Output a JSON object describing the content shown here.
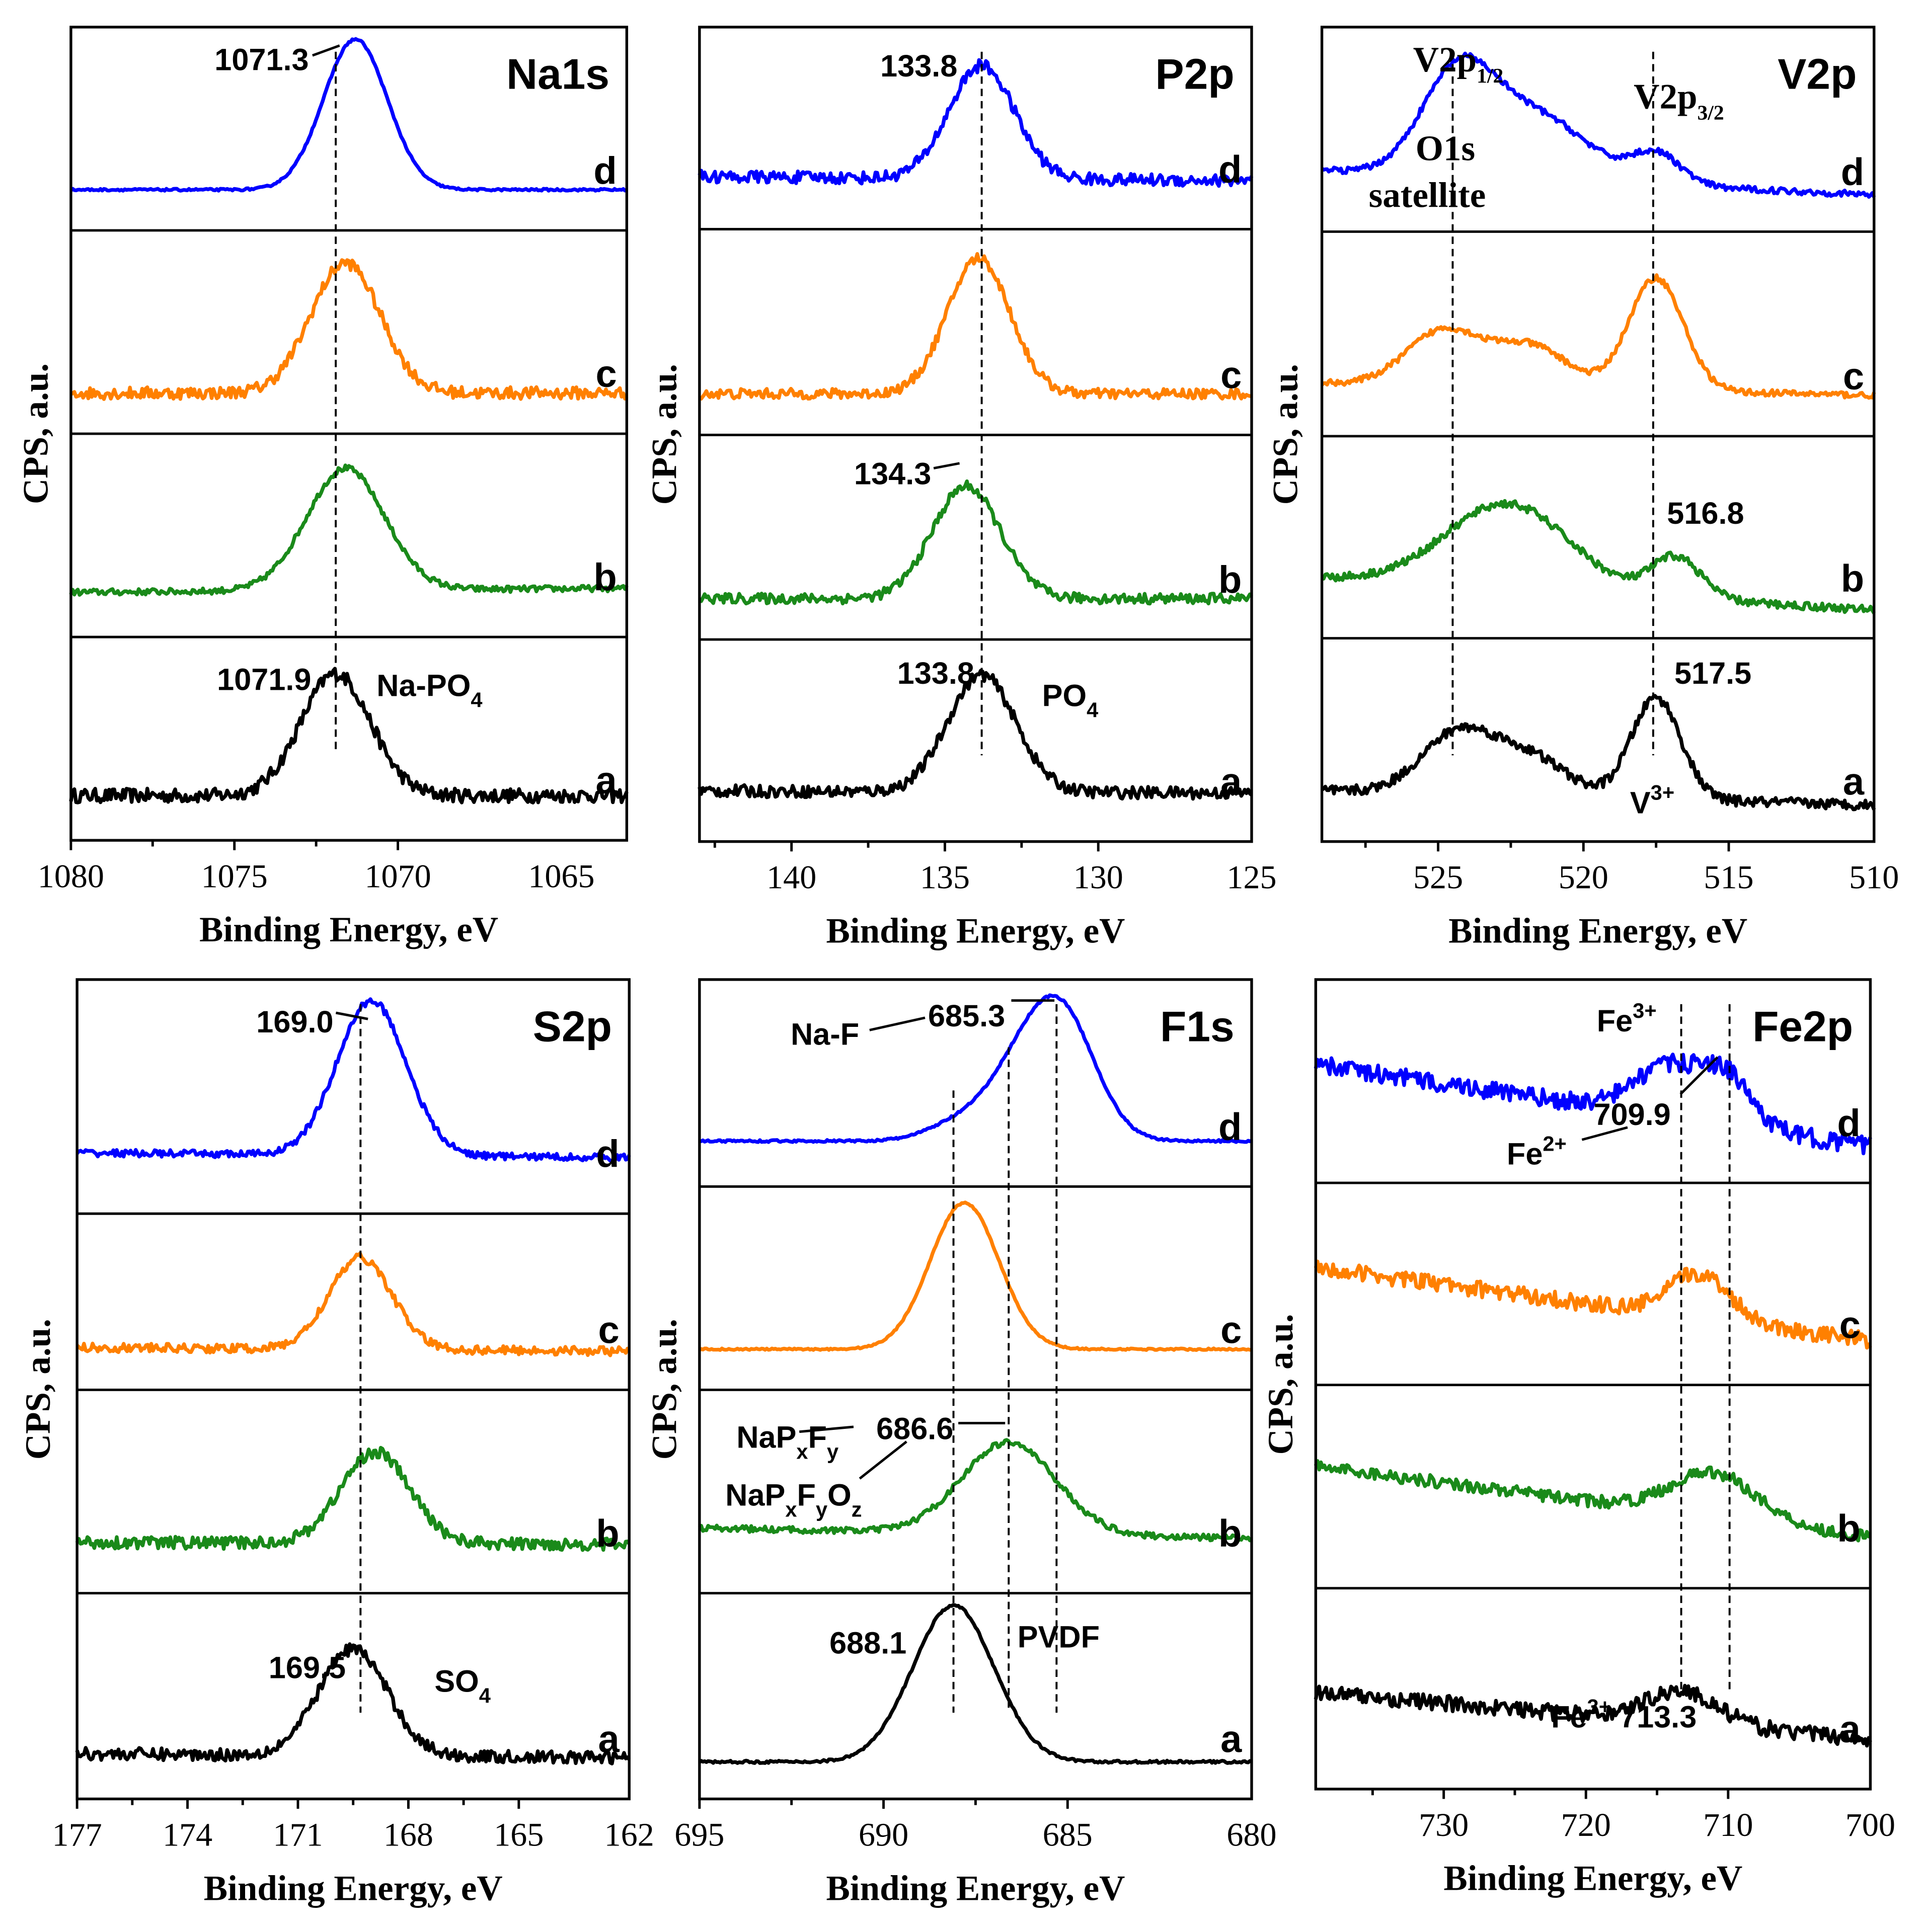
{
  "chart_data": [
    {
      "type": "line",
      "title": "Na1s",
      "xlabel": "Binding Energy, eV",
      "ylabel": "CPS, a.u.",
      "xlim": [
        1080,
        1063
      ],
      "ticks": [
        1080,
        1075,
        1070,
        1065
      ],
      "tick_labels": [
        "1080",
        "1075",
        "1070",
        "1065"
      ],
      "reference_lines_eV": [
        1071.9
      ],
      "spectra": [
        {
          "label": "a",
          "color": "#000000",
          "baseline": [
            0.22,
            0.22
          ],
          "noise": 0.035,
          "peaks": [
            {
              "center": 1071.9,
              "height": 0.6,
              "fwhm": 2.5
            }
          ]
        },
        {
          "label": "b",
          "color": "#1a8a1a",
          "baseline": [
            0.22,
            0.24
          ],
          "noise": 0.015,
          "peaks": [
            {
              "center": 1071.6,
              "height": 0.6,
              "fwhm": 2.8
            }
          ]
        },
        {
          "label": "c",
          "color": "#ff8000",
          "baseline": [
            0.2,
            0.2
          ],
          "noise": 0.03,
          "peaks": [
            {
              "center": 1071.6,
              "height": 0.64,
              "fwhm": 2.5
            }
          ]
        },
        {
          "label": "d",
          "color": "#0000ff",
          "baseline": [
            0.2,
            0.2
          ],
          "noise": 0.005,
          "peaks": [
            {
              "center": 1071.3,
              "height": 0.74,
              "fwhm": 2.3
            }
          ]
        }
      ],
      "annotations": [
        {
          "segments": [
            {
              "text": "1071.3"
            }
          ]
        },
        {
          "segments": [
            {
              "text": "1071.9"
            }
          ]
        },
        {
          "segments": [
            {
              "text": "Na-PO"
            },
            {
              "text": "4",
              "shift": "sub"
            }
          ]
        }
      ]
    },
    {
      "type": "line",
      "title": "P2p",
      "xlabel": "Binding Energy, eV",
      "ylabel": "CPS, a.u.",
      "xlim": [
        143,
        125
      ],
      "ticks": [
        140,
        135,
        130,
        125
      ],
      "tick_labels": [
        "140",
        "135",
        "130",
        "125"
      ],
      "reference_lines_eV": [
        133.8
      ],
      "spectra": [
        {
          "label": "a",
          "color": "#000000",
          "baseline": [
            0.25,
            0.24
          ],
          "noise": 0.03,
          "peaks": [
            {
              "center": 133.8,
              "height": 0.58,
              "fwhm": 2.6
            }
          ]
        },
        {
          "label": "b",
          "color": "#1a8a1a",
          "baseline": [
            0.2,
            0.2
          ],
          "noise": 0.025,
          "peaks": [
            {
              "center": 134.3,
              "height": 0.55,
              "fwhm": 2.6
            }
          ]
        },
        {
          "label": "c",
          "color": "#ff8000",
          "baseline": [
            0.2,
            0.2
          ],
          "noise": 0.025,
          "peaks": [
            {
              "center": 133.9,
              "height": 0.66,
              "fwhm": 2.4
            }
          ]
        },
        {
          "label": "d",
          "color": "#0000ff",
          "baseline": [
            0.26,
            0.24
          ],
          "noise": 0.03,
          "peaks": [
            {
              "center": 133.8,
              "height": 0.56,
              "fwhm": 2.5
            }
          ]
        }
      ],
      "annotations": [
        {
          "segments": [
            {
              "text": "133.8"
            }
          ]
        },
        {
          "segments": [
            {
              "text": "134.3"
            }
          ]
        },
        {
          "segments": [
            {
              "text": "133.8"
            }
          ]
        },
        {
          "segments": [
            {
              "text": "PO"
            },
            {
              "text": "4",
              "shift": "sub"
            }
          ]
        }
      ]
    },
    {
      "type": "line",
      "title": "V2p",
      "xlabel": "Binding Energy, eV",
      "ylabel": "CPS, a.u.",
      "xlim": [
        529,
        510
      ],
      "ticks": [
        525,
        520,
        515,
        510
      ],
      "tick_labels": [
        "525",
        "520",
        "515",
        "510"
      ],
      "reference_lines_eV": [
        524.5,
        517.6
      ],
      "spectra": [
        {
          "label": "a",
          "color": "#000000",
          "baseline": [
            0.25,
            0.18
          ],
          "noise": 0.025,
          "peaks": [
            {
              "center": 524.3,
              "height": 0.3,
              "fwhm": 3
            },
            {
              "center": 521.8,
              "height": 0.18,
              "fwhm": 3
            },
            {
              "center": 517.5,
              "height": 0.5,
              "fwhm": 2
            }
          ]
        },
        {
          "label": "b",
          "color": "#1a8a1a",
          "baseline": [
            0.3,
            0.14
          ],
          "noise": 0.02,
          "peaks": [
            {
              "center": 522.6,
              "height": 0.42,
              "fwhm": 5
            },
            {
              "center": 516.8,
              "height": 0.2,
              "fwhm": 2
            }
          ]
        },
        {
          "label": "c",
          "color": "#ff8000",
          "baseline": [
            0.26,
            0.2
          ],
          "noise": 0.015,
          "peaks": [
            {
              "center": 524.8,
              "height": 0.27,
              "fwhm": 3
            },
            {
              "center": 521.8,
              "height": 0.2,
              "fwhm": 3
            },
            {
              "center": 517.5,
              "height": 0.55,
              "fwhm": 2.2
            }
          ]
        },
        {
          "label": "d",
          "color": "#0000ff",
          "baseline": [
            0.3,
            0.18
          ],
          "noise": 0.015,
          "peaks": [
            {
              "center": 524.3,
              "height": 0.5,
              "fwhm": 3
            },
            {
              "center": 521.5,
              "height": 0.3,
              "fwhm": 4
            },
            {
              "center": 517.5,
              "height": 0.15,
              "fwhm": 2
            }
          ]
        }
      ],
      "annotations": [
        {
          "segments": [
            {
              "text": "V2p"
            },
            {
              "text": "1/2",
              "shift": "sub"
            }
          ]
        },
        {
          "segments": [
            {
              "text": "O1s"
            }
          ]
        },
        {
          "segments": [
            {
              "text": "satellite"
            }
          ]
        },
        {
          "segments": [
            {
              "text": "V2p"
            },
            {
              "text": "3/2",
              "shift": "sub"
            }
          ]
        },
        {
          "segments": [
            {
              "text": "516.8"
            }
          ]
        },
        {
          "segments": [
            {
              "text": "517.5"
            }
          ]
        },
        {
          "segments": [
            {
              "text": "V"
            },
            {
              "text": "3+",
              "shift": "sup"
            }
          ]
        }
      ]
    },
    {
      "type": "line",
      "title": "S2p",
      "xlabel": "Binding Energy, eV",
      "ylabel": "CPS, a.u.",
      "xlim": [
        177,
        162
      ],
      "ticks": [
        177,
        174,
        171,
        168,
        165,
        162
      ],
      "tick_labels": [
        "177",
        "174",
        "171",
        "168",
        "165",
        "162"
      ],
      "reference_lines_eV": [
        169.3
      ],
      "spectra": [
        {
          "label": "a",
          "color": "#000000",
          "baseline": [
            0.22,
            0.2
          ],
          "noise": 0.03,
          "peaks": [
            {
              "center": 169.5,
              "height": 0.52,
              "fwhm": 2.2
            }
          ]
        },
        {
          "label": "b",
          "color": "#1a8a1a",
          "baseline": [
            0.25,
            0.24
          ],
          "noise": 0.03,
          "peaks": [
            {
              "center": 168.9,
              "height": 0.45,
              "fwhm": 2.2
            }
          ]
        },
        {
          "label": "c",
          "color": "#ff8000",
          "baseline": [
            0.24,
            0.22
          ],
          "noise": 0.025,
          "peaks": [
            {
              "center": 169.3,
              "height": 0.52,
              "fwhm": 2
            }
          ]
        },
        {
          "label": "d",
          "color": "#0000ff",
          "baseline": [
            0.26,
            0.24
          ],
          "noise": 0.015,
          "peaks": [
            {
              "center": 169.0,
              "height": 0.66,
              "fwhm": 2.2
            }
          ]
        }
      ],
      "annotations": [
        {
          "segments": [
            {
              "text": "169.0"
            }
          ]
        },
        {
          "segments": [
            {
              "text": "169.5"
            }
          ]
        },
        {
          "segments": [
            {
              "text": "SO"
            },
            {
              "text": "4",
              "shift": "sub"
            }
          ]
        }
      ]
    },
    {
      "type": "line",
      "title": "F1s",
      "xlabel": "Binding Energy, eV",
      "ylabel": "CPS, a.u.",
      "xlim": [
        695,
        680
      ],
      "ticks": [
        695,
        690,
        685,
        680
      ],
      "tick_labels": [
        "695",
        "690",
        "685",
        "680"
      ],
      "reference_lines_eV": [
        688.1,
        686.6,
        685.3
      ],
      "spectra": [
        {
          "label": "a",
          "color": "#000000",
          "baseline": [
            0.18,
            0.18
          ],
          "noise": 0.006,
          "peaks": [
            {
              "center": 688.1,
              "height": 0.76,
              "fwhm": 2.6
            }
          ]
        },
        {
          "label": "b",
          "color": "#1a8a1a",
          "baseline": [
            0.32,
            0.27
          ],
          "noise": 0.015,
          "peaks": [
            {
              "center": 686.6,
              "height": 0.45,
              "fwhm": 3
            }
          ]
        },
        {
          "label": "c",
          "color": "#ff8000",
          "baseline": [
            0.2,
            0.2
          ],
          "noise": 0.004,
          "peaks": [
            {
              "center": 687.8,
              "height": 0.72,
              "fwhm": 2.2
            }
          ]
        },
        {
          "label": "d",
          "color": "#0000ff",
          "baseline": [
            0.22,
            0.22
          ],
          "noise": 0.005,
          "peaks": [
            {
              "center": 688.0,
              "height": 0.08,
              "fwhm": 2
            },
            {
              "center": 686.5,
              "height": 0.22,
              "fwhm": 2
            },
            {
              "center": 685.2,
              "height": 0.62,
              "fwhm": 2.2
            }
          ]
        }
      ],
      "annotations": [
        {
          "segments": [
            {
              "text": "Na-F"
            }
          ]
        },
        {
          "segments": [
            {
              "text": "685.3"
            }
          ]
        },
        {
          "segments": [
            {
              "text": "NaP"
            },
            {
              "text": "x",
              "shift": "sub"
            },
            {
              "text": "F"
            },
            {
              "text": "y",
              "shift": "sub"
            }
          ]
        },
        {
          "segments": [
            {
              "text": "686.6"
            }
          ]
        },
        {
          "segments": [
            {
              "text": "NaP"
            },
            {
              "text": "x",
              "shift": "sub"
            },
            {
              "text": "F"
            },
            {
              "text": "y",
              "shift": "sub"
            },
            {
              "text": "O"
            },
            {
              "text": "z",
              "shift": "sub"
            }
          ]
        },
        {
          "segments": [
            {
              "text": "688.1"
            }
          ]
        },
        {
          "segments": [
            {
              "text": "PVDF"
            }
          ]
        }
      ]
    },
    {
      "type": "line",
      "title": "Fe2p",
      "xlabel": "Binding Energy, eV",
      "ylabel": "CPS, a.u.",
      "xlim": [
        739,
        700
      ],
      "ticks": [
        730,
        720,
        710,
        700
      ],
      "tick_labels": [
        "730",
        "720",
        "710",
        "700"
      ],
      "reference_lines_eV": [
        713.3,
        709.9
      ],
      "spectra": [
        {
          "label": "a",
          "color": "#000000",
          "baseline": [
            0.48,
            0.25
          ],
          "noise": 0.04,
          "peaks": [
            {
              "center": 713.3,
              "height": 0.16,
              "fwhm": 6
            }
          ]
        },
        {
          "label": "b",
          "color": "#1a8a1a",
          "baseline": [
            0.6,
            0.25
          ],
          "noise": 0.03,
          "peaks": [
            {
              "center": 711,
              "height": 0.22,
              "fwhm": 7
            }
          ]
        },
        {
          "label": "c",
          "color": "#ff8000",
          "baseline": [
            0.58,
            0.22
          ],
          "noise": 0.04,
          "peaks": [
            {
              "center": 712,
              "height": 0.22,
              "fwhm": 5
            }
          ]
        },
        {
          "label": "d",
          "color": "#0000ff",
          "baseline": [
            0.58,
            0.18
          ],
          "noise": 0.045,
          "peaks": [
            {
              "center": 714,
              "height": 0.25,
              "fwhm": 6
            },
            {
              "center": 710,
              "height": 0.2,
              "fwhm": 4
            }
          ]
        }
      ],
      "annotations": [
        {
          "segments": [
            {
              "text": "Fe"
            },
            {
              "text": "3+",
              "shift": "sup"
            }
          ]
        },
        {
          "segments": [
            {
              "text": "709.9"
            }
          ]
        },
        {
          "segments": [
            {
              "text": "Fe"
            },
            {
              "text": "2+",
              "shift": "sup"
            }
          ]
        },
        {
          "segments": [
            {
              "text": "Fe"
            },
            {
              "text": "3+",
              "shift": "sup"
            },
            {
              "text": " 713.3"
            }
          ]
        }
      ]
    }
  ]
}
